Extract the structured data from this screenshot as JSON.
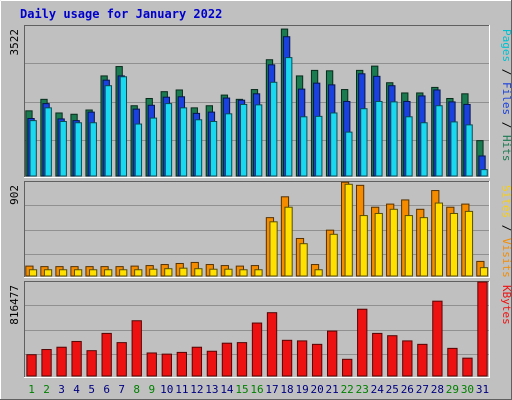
{
  "chart_data": {
    "type": "bar",
    "title": "Daily usage for January 2022",
    "days": [
      "1",
      "2",
      "3",
      "4",
      "5",
      "6",
      "7",
      "8",
      "9",
      "10",
      "11",
      "12",
      "13",
      "14",
      "15",
      "16",
      "17",
      "18",
      "19",
      "20",
      "21",
      "22",
      "23",
      "24",
      "25",
      "26",
      "27",
      "28",
      "29",
      "30",
      "31"
    ],
    "weekend_days": [
      "1",
      "2",
      "8",
      "9",
      "15",
      "16",
      "22",
      "23",
      "29",
      "30"
    ],
    "colors": {
      "hits": "#1a7a50",
      "files": "#1a40dd",
      "pages": "#1ad8f0",
      "visits": "#f58c00",
      "sites": "#ffe000",
      "kbytes": "#ee1111",
      "weekday_label": "#000080",
      "weekend_label": "#008000",
      "title": "#0000cc"
    },
    "panels": [
      {
        "id": "hits-files-pages",
        "max_label": "3522",
        "ymax": 3522,
        "right_label": [
          {
            "text": "Pages",
            "color": "#00c0d0"
          },
          {
            "text": " / ",
            "color": "#000000"
          },
          {
            "text": "Files",
            "color": "#1a40dd"
          },
          {
            "text": " / ",
            "color": "#000000"
          },
          {
            "text": "Hits",
            "color": "#1a7a50"
          }
        ],
        "series": [
          {
            "name": "Hits",
            "color": "#1a7a50",
            "values": [
              1530,
              1800,
              1480,
              1450,
              1550,
              2350,
              2570,
              1650,
              1820,
              1980,
              2020,
              1600,
              1650,
              1900,
              1800,
              2030,
              2730,
              3450,
              2350,
              2480,
              2470,
              2030,
              2480,
              2580,
              2190,
              1950,
              1950,
              2080,
              1820,
              1930,
              830
            ]
          },
          {
            "name": "Files",
            "color": "#1a40dd",
            "values": [
              1350,
              1700,
              1340,
              1300,
              1500,
              2250,
              2350,
              1570,
              1660,
              1850,
              1860,
              1470,
              1500,
              1830,
              1780,
              1930,
              2610,
              3270,
              2040,
              2180,
              2140,
              1750,
              2400,
              2340,
              2120,
              1750,
              1880,
              2020,
              1740,
              1680,
              470
            ]
          },
          {
            "name": "Pages",
            "color": "#1ad8f0",
            "values": [
              1300,
              1600,
              1280,
              1250,
              1250,
              2120,
              2330,
              1220,
              1360,
              1700,
              1600,
              1320,
              1280,
              1460,
              1680,
              1670,
              2200,
              2780,
              1390,
              1400,
              1480,
              1030,
              1580,
              1750,
              1740,
              1390,
              1250,
              1650,
              1270,
              1200,
              150
            ]
          }
        ]
      },
      {
        "id": "visits-sites",
        "max_label": "902",
        "ymax": 902,
        "right_label": [
          {
            "text": "Sites",
            "color": "#ffd000"
          },
          {
            "text": " / ",
            "color": "#000000"
          },
          {
            "text": "Visits",
            "color": "#f58c00"
          }
        ],
        "series": [
          {
            "name": "Visits",
            "color": "#f58c00",
            "values": [
              95,
              90,
              90,
              90,
              90,
              90,
              90,
              95,
              100,
              110,
              120,
              130,
              110,
              100,
              95,
              100,
              560,
              760,
              360,
              110,
              440,
              900,
              870,
              660,
              690,
              730,
              640,
              820,
              660,
              690,
              140
            ]
          },
          {
            "name": "Sites",
            "color": "#ffe000",
            "values": [
              60,
              60,
              60,
              60,
              60,
              60,
              60,
              60,
              65,
              70,
              75,
              70,
              65,
              65,
              60,
              60,
              520,
              660,
              310,
              60,
              400,
              880,
              580,
              600,
              640,
              580,
              560,
              700,
              600,
              620,
              80
            ]
          }
        ]
      },
      {
        "id": "kbytes",
        "max_label": "816477",
        "ymax": 816477,
        "right_label": [
          {
            "text": "KBytes",
            "color": "#ee1111"
          }
        ],
        "series": [
          {
            "name": "KBytes",
            "color": "#ee1111",
            "values": [
              185000,
              230000,
              250000,
              300000,
              220000,
              370000,
              290000,
              480000,
              200000,
              190000,
              205000,
              250000,
              215000,
              285000,
              290000,
              460000,
              550000,
              310000,
              305000,
              275000,
              390000,
              145000,
              580000,
              370000,
              350000,
              305000,
              275000,
              650000,
              240000,
              155000,
              816477
            ]
          }
        ]
      }
    ]
  }
}
